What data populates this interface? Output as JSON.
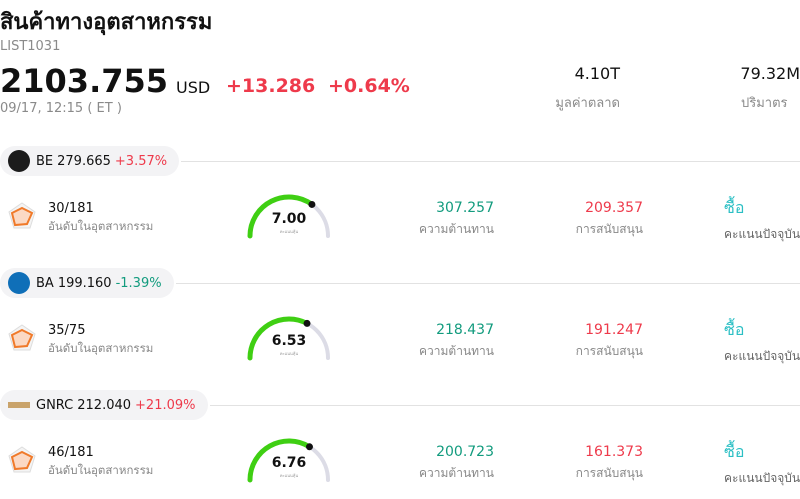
{
  "header": {
    "title": "สินค้าทางอุตสาหกรรม",
    "code": "LIST1031",
    "price": "2103.755",
    "currency": "USD",
    "change": "+13.286",
    "change_pct": "+0.64%",
    "change_color": "#ee3a4b",
    "time": "09/17, 12:15  ( ET )",
    "stats": [
      {
        "value": "4.10T",
        "label": "มูลค่าตลาด"
      },
      {
        "value": "79.32M",
        "label": "ปริมาตร"
      }
    ]
  },
  "score_range": [
    0,
    10
  ],
  "stocks": [
    {
      "symbol": "BE",
      "price": "279.665",
      "change": "+3.57%",
      "change_color": "#ee3a4b",
      "rank": "30/181",
      "rank_label": "อันดับในอุตสาหกรรม",
      "score": {
        "value": 7,
        "label": "7.00"
      },
      "score_label": "คะแนนหุ้น",
      "resistance": "307.257",
      "resistance_label": "ความต้านทาน",
      "support": "209.357",
      "support_label": "การสนับสนุน",
      "signal": "ซื้อ",
      "signal_label": "คะแนนปัจจุบัน"
    },
    {
      "symbol": "BA",
      "price": "199.160",
      "change": "-1.39%",
      "change_color": "#129b7e",
      "rank": "35/75",
      "rank_label": "อันดับในอุตสาหกรรม",
      "score": {
        "value": 6.53,
        "label": "6.53"
      },
      "score_label": "คะแนนหุ้น",
      "resistance": "218.437",
      "resistance_label": "ความต้านทาน",
      "support": "191.247",
      "support_label": "การสนับสนุน",
      "signal": "ซื้อ",
      "signal_label": "คะแนนปัจจุบัน"
    },
    {
      "symbol": "GNRC",
      "price": "212.040",
      "change": "+21.09%",
      "change_color": "#ee3a4b",
      "rank": "46/181",
      "rank_label": "อันดับในอุตสาหกรรม",
      "score": {
        "value": 6.76,
        "label": "6.76"
      },
      "score_label": "คะแนนหุ้น",
      "resistance": "200.723",
      "resistance_label": "ความต้านทาน",
      "support": "161.373",
      "support_label": "การสนับสนุน",
      "signal": "ซื้อ",
      "signal_label": "คะแนนปัจจุบัน"
    }
  ]
}
